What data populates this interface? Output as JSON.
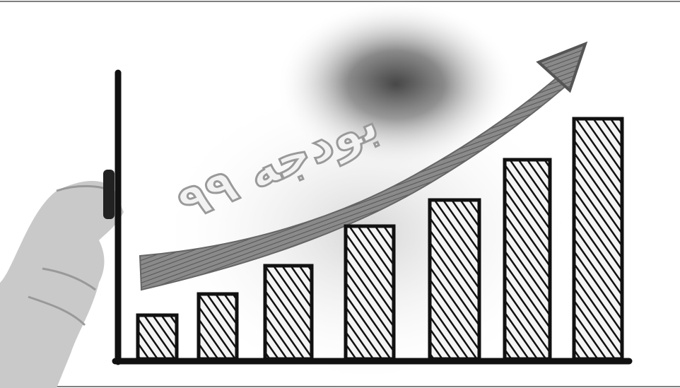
{
  "image": {
    "caption": "بودجه ۹۹"
  }
}
